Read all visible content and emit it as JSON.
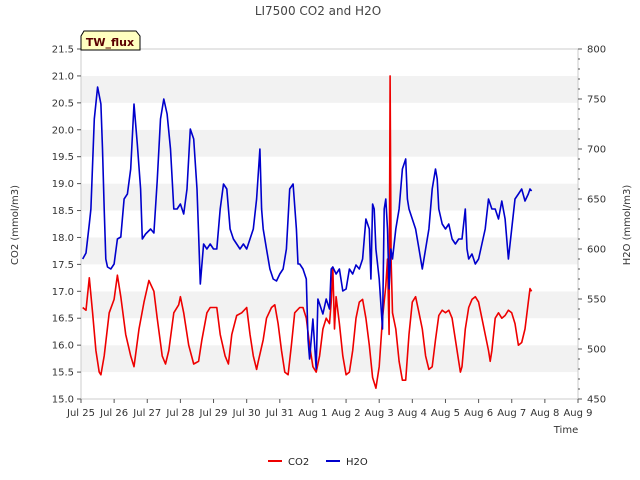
{
  "chart_data": {
    "type": "line",
    "title": "LI7500 CO2 and H2O",
    "xlabel": "Time",
    "ylabel_left": "CO2 (mmol/m3)",
    "ylabel_right": "H2O (mmol/m3)",
    "badge": "TW_flux",
    "x_ticks": [
      "Jul 25",
      "Jul 26",
      "Jul 27",
      "Jul 28",
      "Jul 29",
      "Jul 30",
      "Jul 31",
      "Aug 1",
      "Aug 2",
      "Aug 3",
      "Aug 4",
      "Aug 5",
      "Aug 6",
      "Aug 7",
      "Aug 8",
      "Aug 9"
    ],
    "x_range_days": [
      0,
      15
    ],
    "ylim_left": [
      15.0,
      21.5
    ],
    "yticks_left": [
      "15.0",
      "15.5",
      "16.0",
      "16.5",
      "17.0",
      "17.5",
      "18.0",
      "18.5",
      "19.0",
      "19.5",
      "20.0",
      "20.5",
      "21.0",
      "21.5"
    ],
    "ylim_right": [
      450,
      800
    ],
    "yticks_right": [
      "450",
      "500",
      "550",
      "600",
      "650",
      "700",
      "750",
      "800"
    ],
    "legend_position": "bottom-center",
    "series": [
      {
        "name": "CO2",
        "axis": "left",
        "color": "#ee0000",
        "points": [
          [
            0.05,
            16.7
          ],
          [
            0.15,
            16.65
          ],
          [
            0.25,
            17.25
          ],
          [
            0.35,
            16.6
          ],
          [
            0.45,
            15.9
          ],
          [
            0.55,
            15.5
          ],
          [
            0.6,
            15.45
          ],
          [
            0.7,
            15.8
          ],
          [
            0.85,
            16.6
          ],
          [
            1.0,
            16.85
          ],
          [
            1.1,
            17.3
          ],
          [
            1.2,
            16.9
          ],
          [
            1.35,
            16.2
          ],
          [
            1.5,
            15.8
          ],
          [
            1.6,
            15.6
          ],
          [
            1.75,
            16.3
          ],
          [
            1.9,
            16.8
          ],
          [
            2.05,
            17.2
          ],
          [
            2.2,
            17.0
          ],
          [
            2.3,
            16.5
          ],
          [
            2.45,
            15.8
          ],
          [
            2.55,
            15.65
          ],
          [
            2.65,
            15.9
          ],
          [
            2.8,
            16.6
          ],
          [
            2.95,
            16.75
          ],
          [
            3.0,
            16.9
          ],
          [
            3.1,
            16.6
          ],
          [
            3.25,
            16.0
          ],
          [
            3.4,
            15.65
          ],
          [
            3.55,
            15.7
          ],
          [
            3.65,
            16.1
          ],
          [
            3.8,
            16.6
          ],
          [
            3.9,
            16.7
          ],
          [
            4.1,
            16.7
          ],
          [
            4.2,
            16.2
          ],
          [
            4.35,
            15.8
          ],
          [
            4.45,
            15.65
          ],
          [
            4.55,
            16.2
          ],
          [
            4.7,
            16.55
          ],
          [
            4.85,
            16.6
          ],
          [
            5.0,
            16.7
          ],
          [
            5.1,
            16.2
          ],
          [
            5.2,
            15.8
          ],
          [
            5.3,
            15.55
          ],
          [
            5.35,
            15.7
          ],
          [
            5.5,
            16.1
          ],
          [
            5.6,
            16.5
          ],
          [
            5.75,
            16.7
          ],
          [
            5.85,
            16.75
          ],
          [
            5.95,
            16.4
          ],
          [
            6.05,
            15.9
          ],
          [
            6.15,
            15.5
          ],
          [
            6.25,
            15.45
          ],
          [
            6.35,
            16.0
          ],
          [
            6.45,
            16.6
          ],
          [
            6.6,
            16.7
          ],
          [
            6.7,
            16.7
          ],
          [
            6.8,
            16.5
          ],
          [
            6.9,
            16.0
          ],
          [
            7.0,
            15.6
          ],
          [
            7.1,
            15.5
          ],
          [
            7.2,
            15.8
          ],
          [
            7.3,
            16.3
          ],
          [
            7.4,
            16.5
          ],
          [
            7.5,
            16.4
          ],
          [
            7.55,
            16.8
          ],
          [
            7.6,
            17.45
          ],
          [
            7.65,
            16.3
          ],
          [
            7.7,
            16.9
          ],
          [
            7.8,
            16.4
          ],
          [
            7.9,
            15.8
          ],
          [
            8.0,
            15.45
          ],
          [
            8.1,
            15.5
          ],
          [
            8.2,
            15.9
          ],
          [
            8.3,
            16.5
          ],
          [
            8.4,
            16.8
          ],
          [
            8.5,
            16.85
          ],
          [
            8.6,
            16.5
          ],
          [
            8.7,
            16.0
          ],
          [
            8.8,
            15.4
          ],
          [
            8.9,
            15.2
          ],
          [
            9.0,
            15.6
          ],
          [
            9.1,
            16.5
          ],
          [
            9.2,
            17.1
          ],
          [
            9.25,
            17.6
          ],
          [
            9.3,
            16.2
          ],
          [
            9.33,
            21.0
          ],
          [
            9.36,
            17.6
          ],
          [
            9.4,
            16.6
          ],
          [
            9.5,
            16.3
          ],
          [
            9.6,
            15.7
          ],
          [
            9.7,
            15.35
          ],
          [
            9.8,
            15.35
          ],
          [
            9.9,
            16.2
          ],
          [
            10.0,
            16.8
          ],
          [
            10.1,
            16.9
          ],
          [
            10.2,
            16.6
          ],
          [
            10.3,
            16.3
          ],
          [
            10.4,
            15.8
          ],
          [
            10.5,
            15.55
          ],
          [
            10.6,
            15.6
          ],
          [
            10.7,
            16.1
          ],
          [
            10.8,
            16.55
          ],
          [
            10.9,
            16.65
          ],
          [
            11.0,
            16.6
          ],
          [
            11.1,
            16.65
          ],
          [
            11.2,
            16.5
          ],
          [
            11.3,
            16.1
          ],
          [
            11.4,
            15.7
          ],
          [
            11.45,
            15.5
          ],
          [
            11.5,
            15.6
          ],
          [
            11.6,
            16.3
          ],
          [
            11.7,
            16.7
          ],
          [
            11.8,
            16.85
          ],
          [
            11.9,
            16.9
          ],
          [
            12.0,
            16.8
          ],
          [
            12.1,
            16.5
          ],
          [
            12.2,
            16.2
          ],
          [
            12.3,
            15.9
          ],
          [
            12.35,
            15.7
          ],
          [
            12.4,
            15.9
          ],
          [
            12.5,
            16.5
          ],
          [
            12.6,
            16.6
          ],
          [
            12.7,
            16.5
          ],
          [
            12.8,
            16.55
          ],
          [
            12.9,
            16.65
          ],
          [
            13.0,
            16.6
          ],
          [
            13.1,
            16.4
          ],
          [
            13.2,
            16.0
          ],
          [
            13.3,
            16.05
          ],
          [
            13.4,
            16.3
          ],
          [
            13.5,
            16.8
          ],
          [
            13.55,
            17.05
          ],
          [
            13.6,
            17.0
          ]
        ]
      },
      {
        "name": "H2O",
        "axis": "right",
        "color": "#0000cc",
        "points": [
          [
            0.05,
            590
          ],
          [
            0.15,
            596
          ],
          [
            0.25,
            625
          ],
          [
            0.3,
            640
          ],
          [
            0.4,
            730
          ],
          [
            0.5,
            762
          ],
          [
            0.6,
            745
          ],
          [
            0.65,
            700
          ],
          [
            0.7,
            640
          ],
          [
            0.75,
            590
          ],
          [
            0.8,
            582
          ],
          [
            0.9,
            580
          ],
          [
            1.0,
            585
          ],
          [
            1.1,
            610
          ],
          [
            1.2,
            612
          ],
          [
            1.3,
            650
          ],
          [
            1.4,
            655
          ],
          [
            1.5,
            680
          ],
          [
            1.6,
            745
          ],
          [
            1.7,
            705
          ],
          [
            1.8,
            660
          ],
          [
            1.85,
            610
          ],
          [
            1.95,
            615
          ],
          [
            2.1,
            620
          ],
          [
            2.2,
            616
          ],
          [
            2.3,
            668
          ],
          [
            2.4,
            730
          ],
          [
            2.5,
            750
          ],
          [
            2.6,
            735
          ],
          [
            2.7,
            700
          ],
          [
            2.8,
            640
          ],
          [
            2.9,
            640
          ],
          [
            3.0,
            645
          ],
          [
            3.1,
            635
          ],
          [
            3.2,
            660
          ],
          [
            3.3,
            720
          ],
          [
            3.4,
            710
          ],
          [
            3.5,
            660
          ],
          [
            3.55,
            615
          ],
          [
            3.6,
            565
          ],
          [
            3.7,
            605
          ],
          [
            3.8,
            600
          ],
          [
            3.9,
            605
          ],
          [
            4.0,
            600
          ],
          [
            4.1,
            600
          ],
          [
            4.2,
            640
          ],
          [
            4.3,
            665
          ],
          [
            4.4,
            660
          ],
          [
            4.5,
            620
          ],
          [
            4.6,
            610
          ],
          [
            4.7,
            605
          ],
          [
            4.8,
            600
          ],
          [
            4.9,
            605
          ],
          [
            5.0,
            600
          ],
          [
            5.1,
            610
          ],
          [
            5.2,
            620
          ],
          [
            5.3,
            650
          ],
          [
            5.4,
            700
          ],
          [
            5.45,
            640
          ],
          [
            5.5,
            620
          ],
          [
            5.6,
            600
          ],
          [
            5.7,
            580
          ],
          [
            5.8,
            570
          ],
          [
            5.9,
            568
          ],
          [
            6.0,
            575
          ],
          [
            6.1,
            580
          ],
          [
            6.2,
            600
          ],
          [
            6.3,
            660
          ],
          [
            6.4,
            665
          ],
          [
            6.5,
            620
          ],
          [
            6.55,
            585
          ],
          [
            6.6,
            585
          ],
          [
            6.7,
            580
          ],
          [
            6.8,
            570
          ],
          [
            6.85,
            510
          ],
          [
            6.9,
            490
          ],
          [
            7.0,
            530
          ],
          [
            7.1,
            480
          ],
          [
            7.15,
            550
          ],
          [
            7.2,
            545
          ],
          [
            7.3,
            535
          ],
          [
            7.4,
            550
          ],
          [
            7.5,
            540
          ],
          [
            7.55,
            580
          ],
          [
            7.6,
            582
          ],
          [
            7.7,
            575
          ],
          [
            7.8,
            580
          ],
          [
            7.9,
            558
          ],
          [
            8.0,
            560
          ],
          [
            8.1,
            580
          ],
          [
            8.2,
            575
          ],
          [
            8.3,
            584
          ],
          [
            8.4,
            580
          ],
          [
            8.5,
            590
          ],
          [
            8.6,
            630
          ],
          [
            8.7,
            620
          ],
          [
            8.75,
            570
          ],
          [
            8.8,
            645
          ],
          [
            8.85,
            640
          ],
          [
            8.9,
            600
          ],
          [
            9.0,
            570
          ],
          [
            9.1,
            520
          ],
          [
            9.15,
            640
          ],
          [
            9.2,
            650
          ],
          [
            9.25,
            620
          ],
          [
            9.3,
            560
          ],
          [
            9.35,
            600
          ],
          [
            9.4,
            590
          ],
          [
            9.5,
            620
          ],
          [
            9.6,
            640
          ],
          [
            9.7,
            680
          ],
          [
            9.8,
            690
          ],
          [
            9.85,
            650
          ],
          [
            9.9,
            640
          ],
          [
            10.0,
            630
          ],
          [
            10.1,
            620
          ],
          [
            10.2,
            600
          ],
          [
            10.3,
            580
          ],
          [
            10.4,
            600
          ],
          [
            10.5,
            620
          ],
          [
            10.6,
            660
          ],
          [
            10.7,
            680
          ],
          [
            10.75,
            670
          ],
          [
            10.8,
            640
          ],
          [
            10.9,
            625
          ],
          [
            11.0,
            620
          ],
          [
            11.1,
            625
          ],
          [
            11.2,
            610
          ],
          [
            11.3,
            605
          ],
          [
            11.4,
            610
          ],
          [
            11.5,
            610
          ],
          [
            11.6,
            640
          ],
          [
            11.65,
            600
          ],
          [
            11.7,
            590
          ],
          [
            11.8,
            595
          ],
          [
            11.9,
            585
          ],
          [
            12.0,
            590
          ],
          [
            12.1,
            605
          ],
          [
            12.2,
            620
          ],
          [
            12.3,
            650
          ],
          [
            12.4,
            640
          ],
          [
            12.5,
            640
          ],
          [
            12.6,
            630
          ],
          [
            12.7,
            648
          ],
          [
            12.8,
            630
          ],
          [
            12.9,
            590
          ],
          [
            13.0,
            620
          ],
          [
            13.1,
            650
          ],
          [
            13.2,
            655
          ],
          [
            13.3,
            660
          ],
          [
            13.4,
            648
          ],
          [
            13.5,
            655
          ],
          [
            13.55,
            660
          ],
          [
            13.6,
            658
          ]
        ]
      }
    ]
  }
}
